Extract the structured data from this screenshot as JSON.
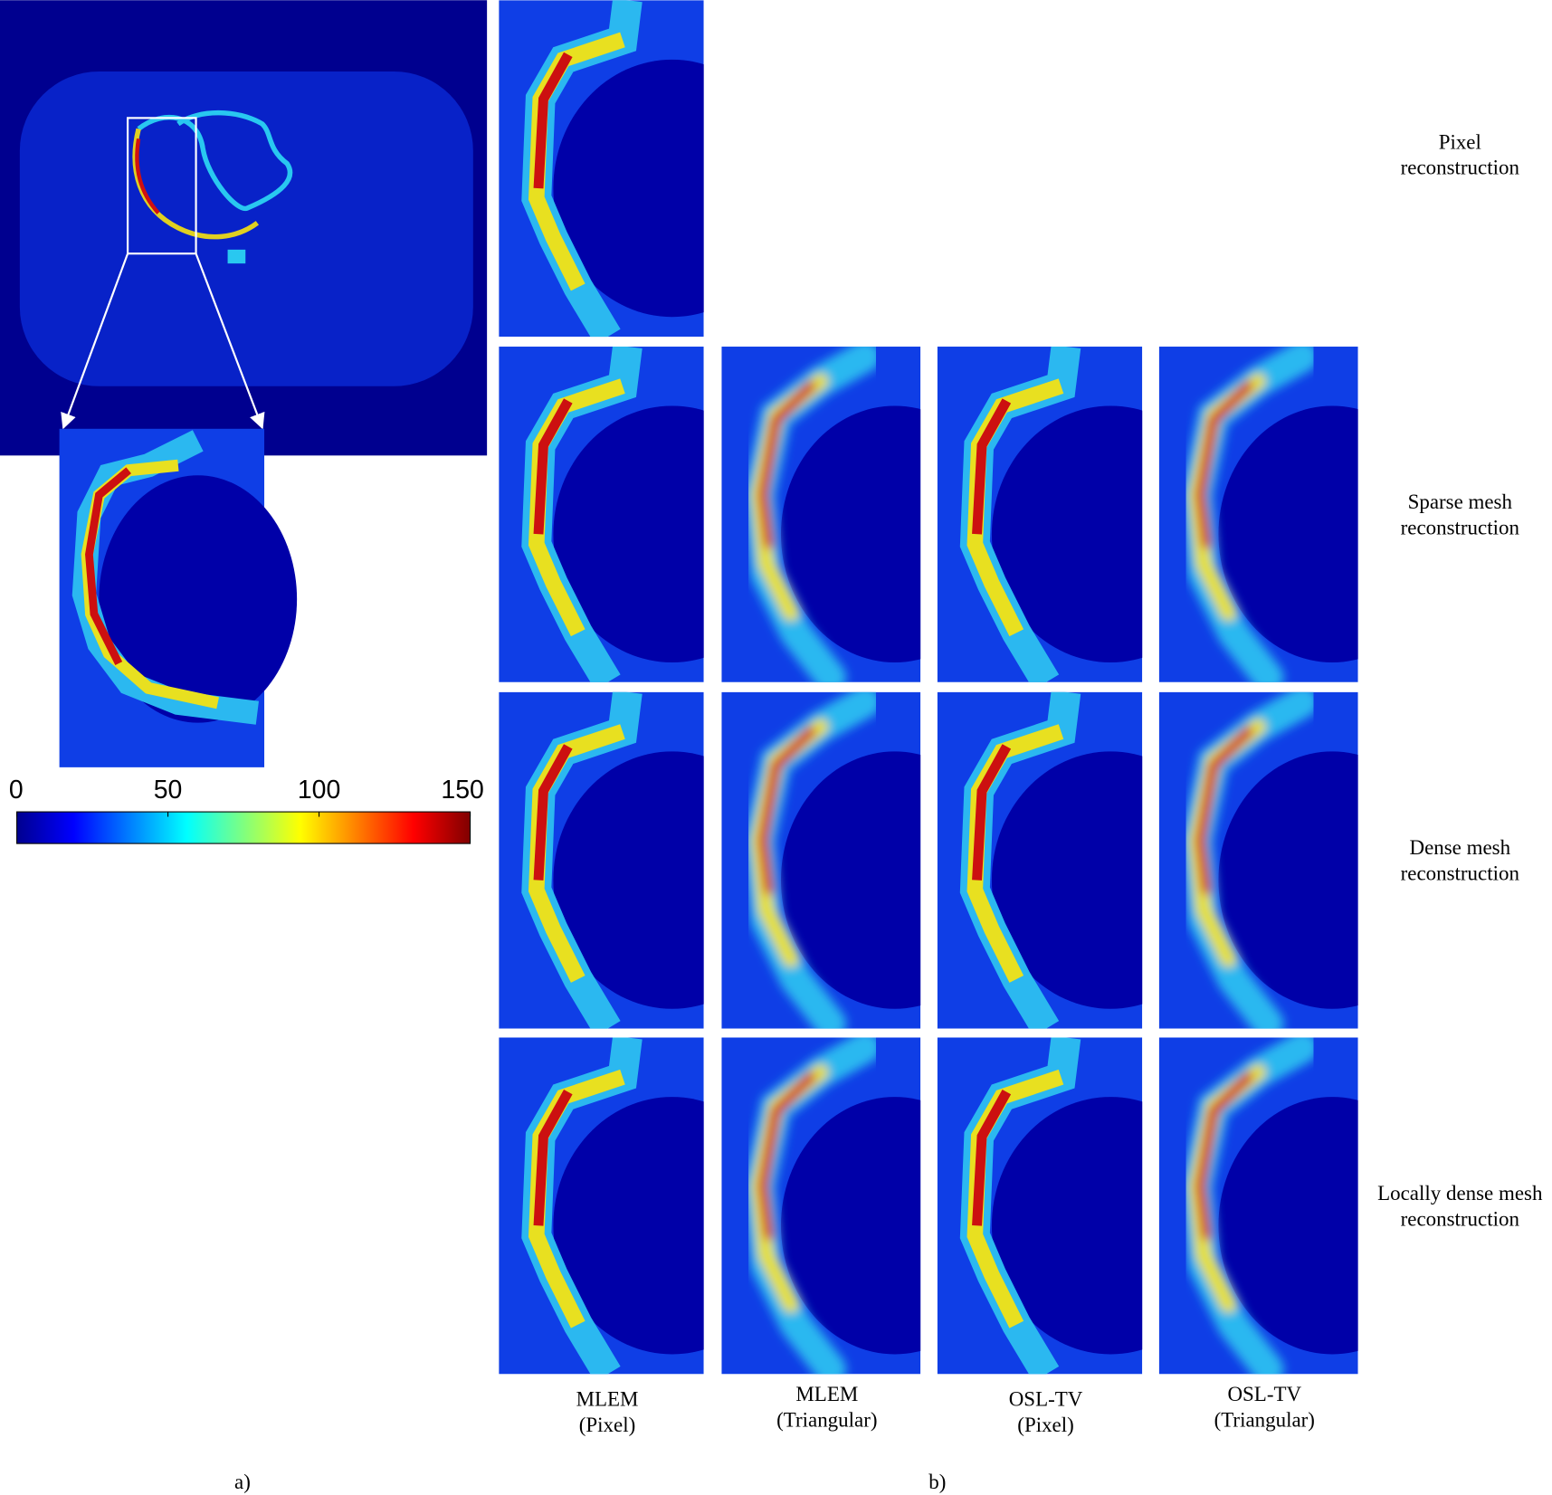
{
  "panel_a": {
    "label": "a)",
    "colorbar": {
      "lim": [
        0,
        150
      ],
      "ticks": [
        0,
        50,
        100,
        150
      ]
    }
  },
  "panel_b": {
    "label": "b)",
    "rows": [
      [
        "Pixel",
        "reconstruction"
      ],
      [
        "Sparse mesh",
        "reconstruction"
      ],
      [
        "Dense mesh",
        "reconstruction"
      ],
      [
        "Locally dense mesh",
        "reconstruction"
      ]
    ],
    "columns": [
      [
        "MLEM",
        "(Pixel)"
      ],
      [
        "MLEM",
        "(Triangular)"
      ],
      [
        "OSL-TV",
        "(Pixel)"
      ],
      [
        "OSL-TV",
        "(Triangular)"
      ]
    ]
  }
}
